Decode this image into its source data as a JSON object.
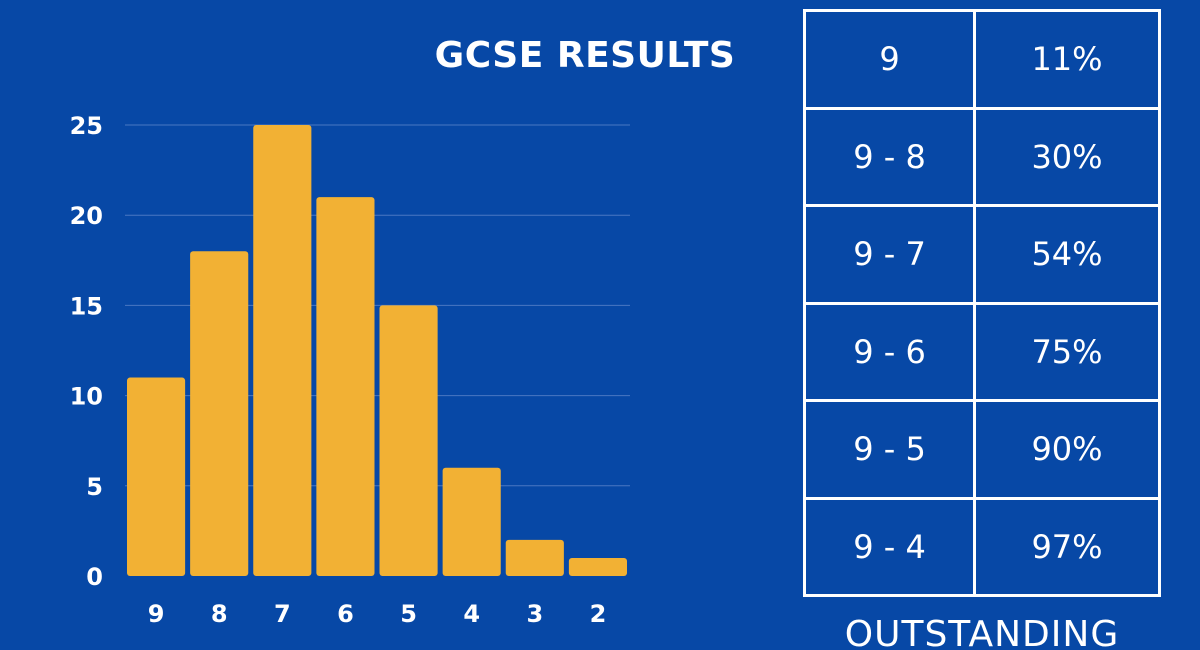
{
  "chart_data": {
    "type": "bar",
    "title": "GCSE RESULTS",
    "categories": [
      "9",
      "8",
      "7",
      "6",
      "5",
      "4",
      "3",
      "2"
    ],
    "values": [
      11,
      18,
      25,
      21,
      15,
      6,
      2,
      1
    ],
    "yticks": [
      0,
      5,
      10,
      15,
      20,
      25
    ],
    "ylim": [
      0,
      25
    ],
    "grid": true,
    "bar_color": "#f2b134",
    "gridline_color": "#4a77c2",
    "xlabel": "",
    "ylabel": ""
  },
  "table": {
    "rows": [
      {
        "range": "9",
        "percent": "11%"
      },
      {
        "range": "9 - 8",
        "percent": "30%"
      },
      {
        "range": "9 - 7",
        "percent": "54%"
      },
      {
        "range": "9 - 6",
        "percent": "75%"
      },
      {
        "range": "9 - 5",
        "percent": "90%"
      },
      {
        "range": "9 - 4",
        "percent": "97%"
      }
    ]
  },
  "footer_label": "OUTSTANDING",
  "colors": {
    "background": "#0748a6",
    "text": "#ffffff"
  }
}
